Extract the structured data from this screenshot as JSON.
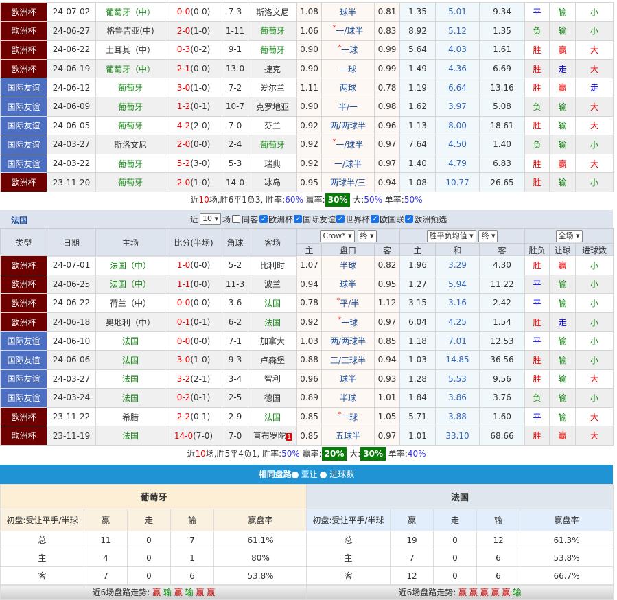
{
  "colors": {
    "euro": "#6e0000",
    "friendly": "#4d6fc2",
    "win_box": "#0a7a0a",
    "bar": "#1f93d3"
  },
  "portugal": {
    "rows": [
      [
        "欧洲杯",
        "24-07-02",
        "葡萄牙（中）",
        "0-0",
        "(0-0)",
        "7-3",
        "斯洛文尼",
        "1.08",
        "球半",
        "",
        "0.81",
        "1.35",
        "5.01",
        "9.34",
        "平",
        "输",
        "小",
        "h"
      ],
      [
        "欧洲杯",
        "24-06-27",
        "格鲁吉亚(中)",
        "2-0",
        "(1-0)",
        "1-11",
        "葡萄牙",
        "1.06",
        "一/球半",
        "*",
        "0.83",
        "8.92",
        "5.12",
        "1.35",
        "负",
        "输",
        "小",
        "a"
      ],
      [
        "欧洲杯",
        "24-06-22",
        "土耳其（中）",
        "0-3",
        "(0-2)",
        "9-1",
        "葡萄牙",
        "0.90",
        "一球",
        "*",
        "0.99",
        "5.64",
        "4.03",
        "1.61",
        "胜",
        "赢",
        "大",
        "a"
      ],
      [
        "欧洲杯",
        "24-06-19",
        "葡萄牙（中）",
        "2-1",
        "(0-0)",
        "13-0",
        "捷克",
        "0.90",
        "一球",
        "",
        "0.99",
        "1.49",
        "4.36",
        "6.69",
        "胜",
        "走",
        "大",
        "h"
      ],
      [
        "国际友谊",
        "24-06-12",
        "葡萄牙",
        "3-0",
        "(1-0)",
        "7-2",
        "爱尔兰",
        "1.11",
        "两球",
        "",
        "0.78",
        "1.19",
        "6.64",
        "13.16",
        "胜",
        "赢",
        "走",
        "h"
      ],
      [
        "国际友谊",
        "24-06-09",
        "葡萄牙",
        "1-2",
        "(0-1)",
        "10-7",
        "克罗地亚",
        "0.90",
        "半/一",
        "",
        "0.98",
        "1.62",
        "3.97",
        "5.08",
        "负",
        "输",
        "大",
        "h"
      ],
      [
        "国际友谊",
        "24-06-05",
        "葡萄牙",
        "4-2",
        "(2-0)",
        "7-0",
        "芬兰",
        "0.92",
        "两/两球半",
        "",
        "0.96",
        "1.13",
        "8.00",
        "18.61",
        "胜",
        "输",
        "大",
        "h"
      ],
      [
        "国际友谊",
        "24-03-27",
        "斯洛文尼",
        "2-0",
        "(0-0)",
        "2-4",
        "葡萄牙",
        "0.92",
        "一/球半",
        "*",
        "0.97",
        "7.64",
        "4.50",
        "1.40",
        "负",
        "输",
        "小",
        "a"
      ],
      [
        "国际友谊",
        "24-03-22",
        "葡萄牙",
        "5-2",
        "(3-0)",
        "5-3",
        "瑞典",
        "0.92",
        "一/球半",
        "",
        "0.97",
        "1.40",
        "4.79",
        "6.83",
        "胜",
        "赢",
        "大",
        "h"
      ],
      [
        "欧洲杯",
        "23-11-20",
        "葡萄牙",
        "2-0",
        "(1-0)",
        "14-0",
        "冰岛",
        "0.95",
        "两球半/三",
        "",
        "0.94",
        "1.08",
        "10.77",
        "26.65",
        "胜",
        "输",
        "小",
        "h"
      ]
    ],
    "summary": {
      "pre": "近",
      "n": "10",
      "mid": "场,胜6平1负3, 胜率:",
      "win": "60%",
      "ah_label": " 赢率:",
      "ah": "30%",
      "big_label": " 大:",
      "big": "50%",
      "odd_label": " 单率:",
      "odd": "50%"
    }
  },
  "france_bar": {
    "title": "法国",
    "recent": "近",
    "count": "10",
    "games": "场",
    "same": "同客",
    "filters": [
      "欧洲杯",
      "国际友谊",
      "世界杯",
      "欧国联",
      "欧洲预选"
    ]
  },
  "header": {
    "type": "类型",
    "date": "日期",
    "home": "主场",
    "score": "比分(半场)",
    "corner": "角球",
    "away": "客场",
    "company": "Crow*",
    "final1": "终",
    "avg": "胜平负均值",
    "final2": "终",
    "scope": "全场",
    "h": "主",
    "line": "盘口",
    "a": "客",
    "h2": "主",
    "d": "和",
    "a2": "客",
    "res": "胜负",
    "ah": "让球",
    "goals": "进球数"
  },
  "france": {
    "rows": [
      [
        "欧洲杯",
        "24-07-01",
        "法国（中）",
        "1-0",
        "(0-0)",
        "5-2",
        "比利时",
        "1.07",
        "半球",
        "",
        "0.82",
        "1.96",
        "3.29",
        "4.30",
        "胜",
        "赢",
        "小",
        "h"
      ],
      [
        "欧洲杯",
        "24-06-25",
        "法国（中）",
        "1-1",
        "(0-0)",
        "11-3",
        "波兰",
        "0.94",
        "球半",
        "",
        "0.95",
        "1.27",
        "5.94",
        "11.22",
        "平",
        "输",
        "小",
        "h"
      ],
      [
        "欧洲杯",
        "24-06-22",
        "荷兰（中）",
        "0-0",
        "(0-0)",
        "3-6",
        "法国",
        "0.78",
        "平/半",
        "*",
        "1.12",
        "3.15",
        "3.16",
        "2.42",
        "平",
        "输",
        "小",
        "a"
      ],
      [
        "欧洲杯",
        "24-06-18",
        "奥地利（中）",
        "0-1",
        "(0-1)",
        "6-2",
        "法国",
        "0.92",
        "一球",
        "*",
        "0.97",
        "6.04",
        "4.25",
        "1.54",
        "胜",
        "走",
        "小",
        "a"
      ],
      [
        "国际友谊",
        "24-06-10",
        "法国",
        "0-0",
        "(0-0)",
        "7-1",
        "加拿大",
        "1.03",
        "两/两球半",
        "",
        "0.85",
        "1.18",
        "7.01",
        "12.53",
        "平",
        "输",
        "小",
        "h"
      ],
      [
        "国际友谊",
        "24-06-06",
        "法国",
        "3-0",
        "(1-0)",
        "9-3",
        "卢森堡",
        "0.88",
        "三/三球半",
        "",
        "0.94",
        "1.03",
        "14.85",
        "36.56",
        "胜",
        "输",
        "小",
        "h"
      ],
      [
        "国际友谊",
        "24-03-27",
        "法国",
        "3-2",
        "(2-1)",
        "3-4",
        "智利",
        "0.96",
        "球半",
        "",
        "0.93",
        "1.28",
        "5.53",
        "9.56",
        "胜",
        "输",
        "大",
        "h"
      ],
      [
        "国际友谊",
        "24-03-24",
        "法国",
        "0-2",
        "(0-1)",
        "2-5",
        "德国",
        "0.89",
        "半球",
        "",
        "1.01",
        "1.84",
        "3.86",
        "3.76",
        "负",
        "输",
        "小",
        "h"
      ],
      [
        "欧洲杯",
        "23-11-22",
        "希腊",
        "2-2",
        "(0-1)",
        "2-9",
        "法国",
        "0.85",
        "一球",
        "*",
        "1.05",
        "5.71",
        "3.88",
        "1.60",
        "平",
        "输",
        "大",
        "a"
      ],
      [
        "欧洲杯",
        "23-11-19",
        "法国",
        "14-0",
        "(7-0)",
        "7-0",
        "直布罗陀",
        "0.85",
        "五球半",
        "",
        "0.97",
        "1.01",
        "33.10",
        "68.66",
        "胜",
        "赢",
        "大",
        "h"
      ]
    ],
    "red_card": "1",
    "summary": {
      "pre": "近",
      "n": "10",
      "mid": "场,胜5平4负1, 胜率:",
      "win": "50%",
      "ah_label": " 赢率:",
      "ah": "20%",
      "big_label": " 大:",
      "big": "30%",
      "odd_label": " 单率:",
      "odd": "40%"
    }
  },
  "same_line": {
    "title": "相同盘路",
    "opt1": "亚让",
    "opt2": "进球数",
    "selected": "进球数"
  },
  "stats": [
    {
      "team": "葡萄牙",
      "cols": [
        "初盘:受让平手/半球",
        "赢",
        "走",
        "输",
        "赢盘率"
      ],
      "rows": [
        [
          "总",
          "11",
          "0",
          "7",
          "61.1%"
        ],
        [
          "主",
          "4",
          "0",
          "1",
          "80%"
        ],
        [
          "客",
          "7",
          "0",
          "6",
          "53.8%"
        ]
      ],
      "trend_label": "近6场盘路走势:",
      "trend": [
        "赢",
        "输",
        "赢",
        "输",
        "赢",
        "赢"
      ]
    },
    {
      "team": "法国",
      "cols": [
        "初盘:受让平手/半球",
        "赢",
        "走",
        "输",
        "赢盘率"
      ],
      "rows": [
        [
          "总",
          "19",
          "0",
          "12",
          "61.3%"
        ],
        [
          "主",
          "7",
          "0",
          "6",
          "53.8%"
        ],
        [
          "客",
          "12",
          "0",
          "6",
          "66.7%"
        ]
      ],
      "trend_label": "近6场盘路走势:",
      "trend": [
        "赢",
        "赢",
        "赢",
        "赢",
        "赢",
        "输"
      ]
    }
  ]
}
